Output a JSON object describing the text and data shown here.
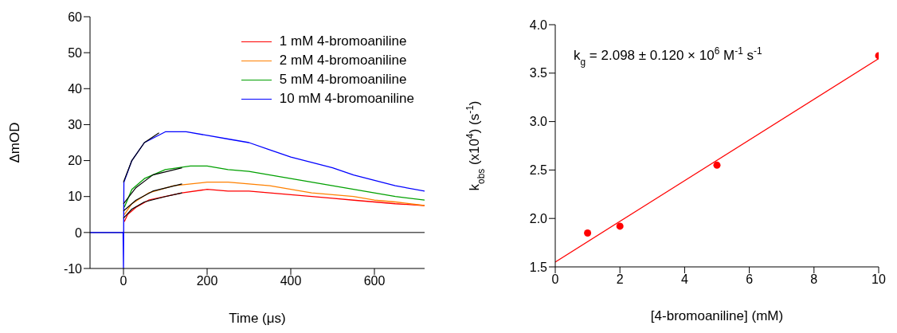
{
  "chart_data": [
    {
      "type": "line",
      "xlabel": "Time (μs)",
      "ylabel": "ΔmOD",
      "xlim": [
        -80,
        720
      ],
      "ylim": [
        -10,
        60
      ],
      "xticks": [
        0,
        200,
        400,
        600
      ],
      "yticks": [
        -10,
        0,
        10,
        20,
        30,
        40,
        50,
        60
      ],
      "legend": "top right",
      "grid": false,
      "ref_lines": [
        {
          "axis": "y",
          "value": 0,
          "color": "#000000"
        }
      ],
      "series": [
        {
          "name": "1 mM 4-bromoaniline",
          "color": "#ff0000",
          "x": [
            2,
            10,
            30,
            60,
            100,
            140,
            200,
            250,
            300,
            350,
            400,
            450,
            500,
            550,
            600,
            650,
            720
          ],
          "values": [
            3,
            5,
            7,
            9,
            10,
            11,
            12,
            11.5,
            11.5,
            11,
            10.5,
            10,
            9.5,
            9,
            8.5,
            8,
            7.5
          ]
        },
        {
          "name": "2 mM 4-bromoaniline",
          "color": "#ff8000",
          "x": [
            2,
            20,
            60,
            120,
            200,
            250,
            300,
            350,
            400,
            450,
            500,
            550,
            600,
            650,
            720
          ],
          "values": [
            5,
            8,
            11,
            13,
            14,
            14,
            13.5,
            13,
            12,
            11,
            10.5,
            10,
            9,
            8.5,
            7.5
          ]
        },
        {
          "name": "5 mM 4-bromoaniline",
          "color": "#00a000",
          "x": [
            2,
            20,
            50,
            100,
            160,
            200,
            250,
            300,
            350,
            400,
            450,
            500,
            550,
            600,
            650,
            720
          ],
          "values": [
            7,
            12,
            15,
            17.5,
            18.5,
            18.5,
            17.5,
            17,
            16,
            15,
            14,
            13,
            12,
            11,
            10,
            9
          ]
        },
        {
          "name": "10 mM 4-bromoaniline",
          "color": "#0000ff",
          "x": [
            -80,
            -1,
            0,
            1,
            20,
            50,
            100,
            150,
            200,
            250,
            300,
            350,
            400,
            450,
            500,
            550,
            600,
            650,
            720
          ],
          "values": [
            0,
            0,
            -10,
            14,
            20,
            25,
            28,
            28,
            27,
            26,
            25,
            23,
            21,
            19.5,
            18,
            16,
            14.5,
            13,
            11.5
          ]
        },
        {
          "color": "#000000",
          "x": [
            0,
            20,
            50,
            100,
            140
          ],
          "values": [
            4,
            6.5,
            8.5,
            10,
            11
          ]
        },
        {
          "color": "#000000",
          "x": [
            0,
            30,
            70,
            140
          ],
          "values": [
            6,
            9,
            11.5,
            13.5
          ]
        },
        {
          "color": "#000000",
          "x": [
            0,
            30,
            70,
            140
          ],
          "values": [
            8,
            12.5,
            16,
            18
          ]
        },
        {
          "color": "#000000",
          "x": [
            0,
            20,
            50,
            85
          ],
          "values": [
            14,
            20,
            25,
            27.7
          ]
        }
      ]
    },
    {
      "type": "scatter",
      "xlabel": "[4-bromoaniline] (mM)",
      "ylabel": "k$_{obs}$ (x10$^{4}$) (s$^{-1}$)",
      "xlim": [
        0,
        10
      ],
      "ylim": [
        1.5,
        4
      ],
      "xticks": [
        0,
        2,
        4,
        6,
        8,
        10
      ],
      "yticks": [
        {
          "value": 1.5,
          "label": "1.5"
        },
        {
          "value": 2,
          "label": "2.0"
        },
        {
          "value": 2.5,
          "label": "2.5"
        },
        {
          "value": 3,
          "label": "3.0"
        },
        {
          "value": 3.5,
          "label": "3.5"
        },
        {
          "value": 4,
          "label": "4.0"
        }
      ],
      "grid": false,
      "legend": false,
      "annotations": [
        "k$_{g}$ = 2.098 ± 0.120 × 10$^{6}$ M$^{-1}$ s$^{-1}$"
      ],
      "series": [
        {
          "marker": "circle",
          "color": "#ff0000",
          "x": [
            1,
            2,
            5,
            10
          ],
          "values": [
            1.85,
            1.92,
            2.55,
            3.68
          ]
        },
        {
          "type": "line",
          "color": "#ff0000",
          "x": [
            0,
            10
          ],
          "values": [
            1.55,
            3.65
          ]
        }
      ]
    }
  ]
}
